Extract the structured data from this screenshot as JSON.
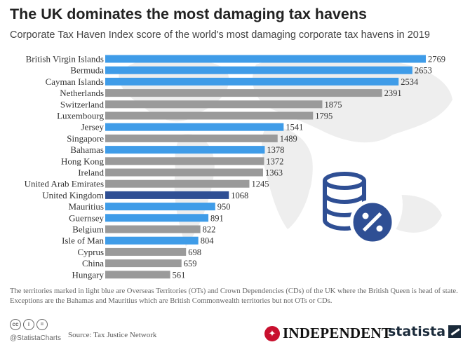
{
  "title": "The UK dominates the most damaging tax havens",
  "subtitle": "Corporate Tax Haven Index score of the world's most damaging corporate tax havens in 2019",
  "colors": {
    "light_blue": "#3f9ce8",
    "uk": "#2f4f94",
    "gray": "#9a9a9a",
    "icon": "#2f4f94"
  },
  "chart_data": {
    "type": "bar",
    "orientation": "horizontal",
    "categories": [
      "British Virgin Islands",
      "Bermuda",
      "Cayman Islands",
      "Netherlands",
      "Switzerland",
      "Luxembourg",
      "Jersey",
      "Singapore",
      "Bahamas",
      "Hong Kong",
      "Ireland",
      "United Arab Emirates",
      "United Kingdom",
      "Mauritius",
      "Guernsey",
      "Belgium",
      "Isle of Man",
      "Cyprus",
      "China",
      "Hungary"
    ],
    "values": [
      2769,
      2653,
      2534,
      2391,
      1875,
      1795,
      1541,
      1489,
      1378,
      1372,
      1363,
      1245,
      1068,
      950,
      891,
      822,
      804,
      698,
      659,
      561
    ],
    "value_labels": [
      "2769",
      "2653",
      "2534",
      "2391",
      "1875",
      "1795",
      "1541",
      "1489",
      "1378",
      "1372",
      "1363",
      "1245",
      "1068",
      "950",
      "891",
      "822",
      "804",
      "698",
      "659",
      "561"
    ],
    "groups": [
      "ot_cd",
      "ot_cd",
      "ot_cd",
      "other",
      "other",
      "other",
      "ot_cd",
      "other",
      "ot_cd",
      "other",
      "other",
      "other",
      "uk",
      "ot_cd",
      "ot_cd",
      "other",
      "ot_cd",
      "other",
      "other",
      "other"
    ],
    "xlim": [
      0,
      2769
    ],
    "grid": false
  },
  "note": "The territories marked in light blue are Overseas Territories (OTs) and Crown Dependencies (CDs) of the UK where the British Queen is head of state. Exceptions are the Bahamas and Mauritius which are British Commonwealth territories but not OTs or CDs.",
  "footer": {
    "handle": "@StatistaCharts",
    "source": "Source: Tax Justice Network",
    "publisher": "INDEPENDENT",
    "brand": "statista",
    "license_icons": [
      "cc",
      "i",
      "="
    ]
  }
}
